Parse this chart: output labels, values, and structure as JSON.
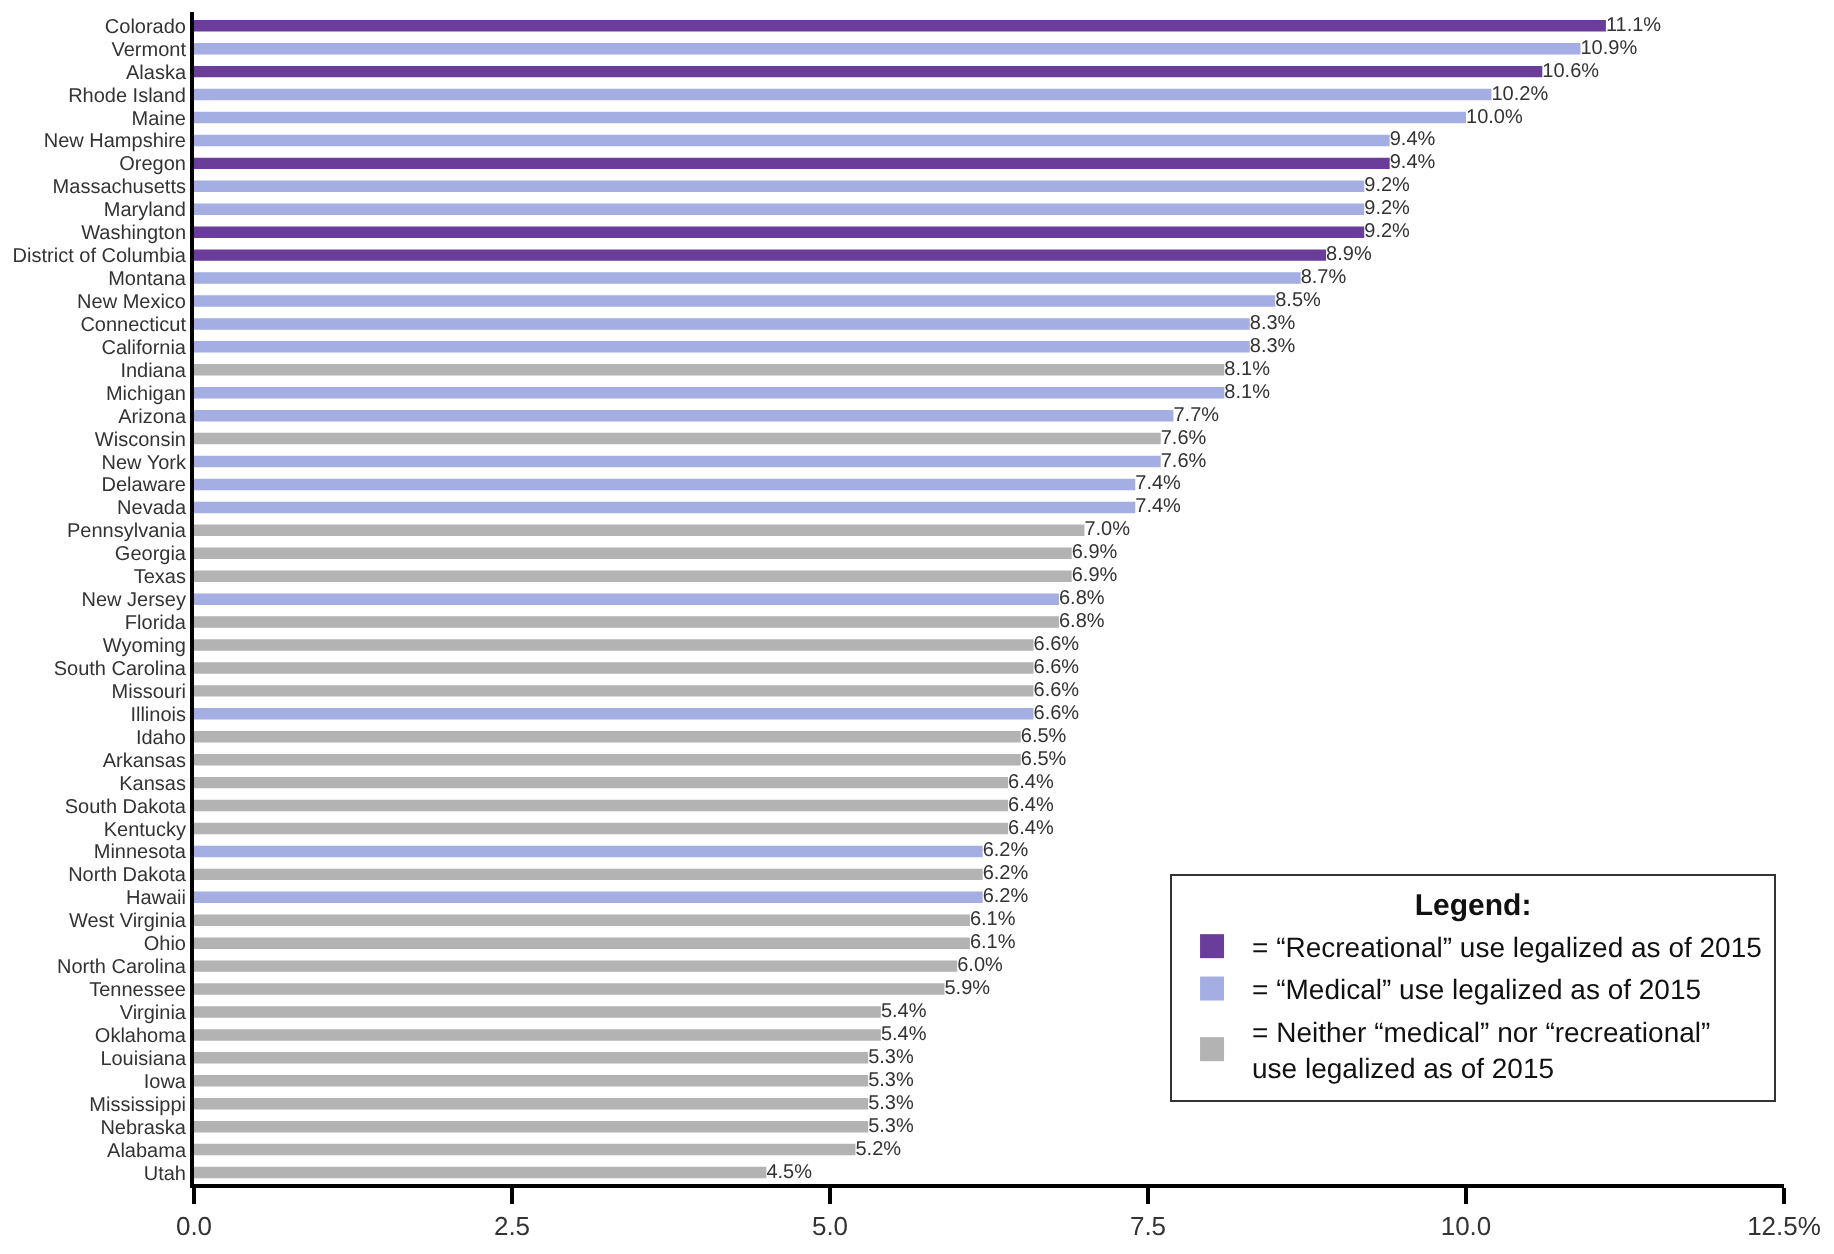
{
  "chart_data": {
    "type": "bar",
    "orientation": "horizontal",
    "legend": "bottom right",
    "legend_title": "Legend:",
    "categories": [
      "Colorado",
      "Vermont",
      "Alaska",
      "Rhode Island",
      "Maine",
      "New Hampshire",
      "Oregon",
      "Massachusetts",
      "Maryland",
      "Washington",
      "District of Columbia",
      "Montana",
      "New Mexico",
      "Connecticut",
      "California",
      "Indiana",
      "Michigan",
      "Arizona",
      "Wisconsin",
      "New York",
      "Delaware",
      "Nevada",
      "Pennsylvania",
      "Georgia",
      "Texas",
      "New Jersey",
      "Florida",
      "Wyoming",
      "South Carolina",
      "Missouri",
      "Illinois",
      "Idaho",
      "Arkansas",
      "Kansas",
      "South Dakota",
      "Kentucky",
      "Minnesota",
      "North Dakota",
      "Hawaii",
      "West Virginia",
      "Ohio",
      "North Carolina",
      "Tennessee",
      "Virginia",
      "Oklahoma",
      "Louisiana",
      "Iowa",
      "Mississippi",
      "Nebraska",
      "Alabama",
      "Utah"
    ],
    "xlim": [
      0,
      12.5
    ],
    "xticks": [
      {
        "value": 0,
        "label": "0.0"
      },
      2.5,
      {
        "value": 5,
        "label": "5.0"
      },
      7.5,
      {
        "value": 10,
        "label": "10.0"
      },
      {
        "value": 12.5,
        "label": "12.5%"
      }
    ],
    "series": [
      {
        "name": "= “Recreational” use legalized as of 2015",
        "color": "#6a3d9a",
        "values": [
          11.1,
          null,
          10.6,
          null,
          null,
          null,
          9.4,
          null,
          null,
          9.2,
          8.9,
          null,
          null,
          null,
          null,
          null,
          null,
          null,
          null,
          null,
          null,
          null,
          null,
          null,
          null,
          null,
          null,
          null,
          null,
          null,
          null,
          null,
          null,
          null,
          null,
          null,
          null,
          null,
          null,
          null,
          null,
          null,
          null,
          null,
          null,
          null,
          null,
          null,
          null,
          null,
          null
        ],
        "value_labels": [
          "11.1%",
          null,
          "10.6%",
          null,
          null,
          null,
          "9.4%",
          null,
          null,
          "9.2%",
          "8.9%",
          null,
          null,
          null,
          null,
          null,
          null,
          null,
          null,
          null,
          null,
          null,
          null,
          null,
          null,
          null,
          null,
          null,
          null,
          null,
          null,
          null,
          null,
          null,
          null,
          null,
          null,
          null,
          null,
          null,
          null,
          null,
          null,
          null,
          null,
          null,
          null,
          null,
          null,
          null,
          null
        ]
      },
      {
        "name": "= “Medical” use legalized as of 2015",
        "color": "#a4aee2",
        "values": [
          null,
          10.9,
          null,
          10.2,
          10.0,
          9.4,
          null,
          9.2,
          9.2,
          null,
          null,
          8.7,
          8.5,
          8.3,
          8.3,
          null,
          8.1,
          7.7,
          null,
          7.6,
          7.4,
          7.4,
          null,
          null,
          null,
          6.8,
          null,
          null,
          null,
          null,
          6.6,
          null,
          null,
          null,
          null,
          null,
          6.2,
          null,
          6.2,
          null,
          null,
          null,
          null,
          null,
          null,
          null,
          null,
          null,
          null,
          null,
          null
        ],
        "value_labels": [
          null,
          "10.9%",
          null,
          "10.2%",
          "10.0%",
          "9.4%",
          null,
          "9.2%",
          "9.2%",
          null,
          null,
          "8.7%",
          "8.5%",
          "8.3%",
          "8.3%",
          null,
          "8.1%",
          "7.7%",
          null,
          "7.6%",
          "7.4%",
          "7.4%",
          null,
          null,
          null,
          "6.8%",
          null,
          null,
          null,
          null,
          "6.6%",
          null,
          null,
          null,
          null,
          null,
          "6.2%",
          null,
          "6.2%",
          null,
          null,
          null,
          null,
          null,
          null,
          null,
          null,
          null,
          null,
          null,
          null
        ]
      },
      {
        "name": "= Neither “medical” nor “recreational” use legalized as of 2015",
        "color": "#b3b3b3",
        "values": [
          null,
          null,
          null,
          null,
          null,
          null,
          null,
          null,
          null,
          null,
          null,
          null,
          null,
          null,
          null,
          8.1,
          null,
          null,
          7.6,
          null,
          null,
          null,
          7.0,
          6.9,
          6.9,
          null,
          6.8,
          6.6,
          6.6,
          6.6,
          null,
          6.5,
          6.5,
          6.4,
          6.4,
          6.4,
          null,
          6.2,
          null,
          6.1,
          6.1,
          6.0,
          5.9,
          5.4,
          5.4,
          5.3,
          5.3,
          5.3,
          5.3,
          5.2,
          4.5
        ],
        "value_labels": [
          null,
          null,
          null,
          null,
          null,
          null,
          null,
          null,
          null,
          null,
          null,
          null,
          null,
          null,
          null,
          "8.1%",
          null,
          null,
          "7.6%",
          null,
          null,
          null,
          "7.0%",
          "6.9%",
          "6.9%",
          null,
          "6.8%",
          "6.6%",
          "6.6%",
          "6.6%",
          null,
          "6.5%",
          "6.5%",
          "6.4%",
          "6.4%",
          "6.4%",
          null,
          "6.2%",
          null,
          "6.1%",
          "6.1%",
          "6.0%",
          "5.9%",
          "5.4%",
          "5.4%",
          "5.3%",
          "5.3%",
          "5.3%",
          "5.3%",
          "5.2%",
          "4.5%"
        ]
      }
    ]
  }
}
